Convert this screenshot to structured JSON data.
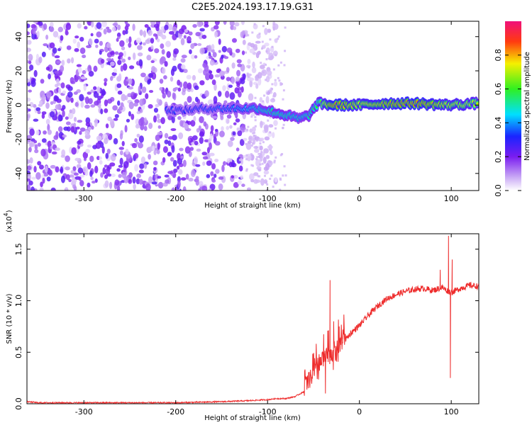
{
  "title": "C2E5.2024.193.17.19.G31",
  "colors": {
    "line": "#ee2b2b",
    "axis": "#000000"
  },
  "chart_data": [
    {
      "type": "heatmap",
      "xlabel": "Height of straight line (km)",
      "ylabel": "Frequency (Hz)",
      "xlim": [
        -362,
        130
      ],
      "ylim": [
        -50,
        49
      ],
      "xticks": [
        -300,
        -200,
        -100,
        0,
        100
      ],
      "yticks": [
        -40,
        -20,
        0,
        20,
        40
      ],
      "xtick_labels": [
        "-300",
        "-200",
        "-100",
        "0",
        "100"
      ],
      "ytick_labels": [
        "-40",
        "-20",
        "0",
        "20",
        "40"
      ],
      "colorbar": {
        "label": "Normalized spectral amplitude",
        "range": [
          0,
          1
        ],
        "ticks": [
          0.0,
          0.2,
          0.4,
          0.6,
          0.8
        ],
        "tick_labels": [
          "0.0",
          "0.2",
          "0.4",
          "0.6",
          "0.8"
        ]
      },
      "noise_region": {
        "x_from": -362,
        "x_to": -125,
        "amplitude_range": [
          0.0,
          0.25
        ]
      },
      "signal_track": [
        {
          "x": -210,
          "y": -3,
          "a": 0.35
        },
        {
          "x": -190,
          "y": -3,
          "a": 0.33
        },
        {
          "x": -170,
          "y": -2,
          "a": 0.35
        },
        {
          "x": -150,
          "y": -2,
          "a": 0.38
        },
        {
          "x": -125,
          "y": -2,
          "a": 0.45
        },
        {
          "x": -110,
          "y": -2,
          "a": 0.5
        },
        {
          "x": -95,
          "y": -4,
          "a": 0.55
        },
        {
          "x": -80,
          "y": -6,
          "a": 0.55
        },
        {
          "x": -65,
          "y": -8,
          "a": 0.5
        },
        {
          "x": -55,
          "y": -6,
          "a": 0.55
        },
        {
          "x": -45,
          "y": 1,
          "a": 0.6
        },
        {
          "x": -30,
          "y": 0,
          "a": 0.85
        },
        {
          "x": 0,
          "y": 0,
          "a": 0.75
        },
        {
          "x": 30,
          "y": 1,
          "a": 0.8
        },
        {
          "x": 60,
          "y": 1,
          "a": 0.85
        },
        {
          "x": 95,
          "y": 0,
          "a": 0.75
        },
        {
          "x": 130,
          "y": 1,
          "a": 0.7
        }
      ]
    },
    {
      "type": "line",
      "xlabel": "Height of straight line (km)",
      "ylabel": "SNR (10 * v/v)",
      "scale_label": "(x10",
      "scale_exponent": "4",
      "scale_suffix": ")",
      "xlim": [
        -362,
        130
      ],
      "ylim": [
        0,
        1.65
      ],
      "xticks": [
        -300,
        -200,
        -100,
        0,
        100
      ],
      "yticks": [
        0.0,
        0.5,
        1.0,
        1.5
      ],
      "xtick_labels": [
        "-300",
        "-200",
        "-100",
        "0",
        "100"
      ],
      "ytick_labels": [
        "0.0",
        "0.5",
        "1.0",
        "1.5"
      ],
      "series": [
        {
          "x": [
            -362,
            -350,
            -300,
            -250,
            -200,
            -150,
            -120,
            -100,
            -90,
            -80,
            -70,
            -60,
            -50,
            -45,
            -40,
            -35,
            -30,
            -25,
            -20,
            -15,
            -10,
            -5,
            0,
            10,
            20,
            30,
            40,
            50,
            60,
            70,
            80,
            90,
            95,
            100,
            110,
            120,
            130
          ],
          "y": [
            0.02,
            0.01,
            0.01,
            0.01,
            0.01,
            0.02,
            0.03,
            0.04,
            0.05,
            0.05,
            0.07,
            0.12,
            0.25,
            0.32,
            0.38,
            0.42,
            0.45,
            0.48,
            0.55,
            0.62,
            0.68,
            0.72,
            0.76,
            0.86,
            0.95,
            1.02,
            1.06,
            1.09,
            1.11,
            1.12,
            1.1,
            1.13,
            1.1,
            1.08,
            1.12,
            1.15,
            1.14
          ]
        }
      ],
      "spikes": [
        {
          "x": -37,
          "y": 0.1
        },
        {
          "x": -32,
          "y": 1.2
        },
        {
          "x": -28,
          "y": 0.8
        },
        {
          "x": -22,
          "y": 0.75
        },
        {
          "x": -18,
          "y": 0.72
        },
        {
          "x": 88,
          "y": 1.3
        },
        {
          "x": 97,
          "y": 1.63
        },
        {
          "x": 99,
          "y": 0.25
        },
        {
          "x": 101,
          "y": 1.4
        }
      ]
    }
  ]
}
